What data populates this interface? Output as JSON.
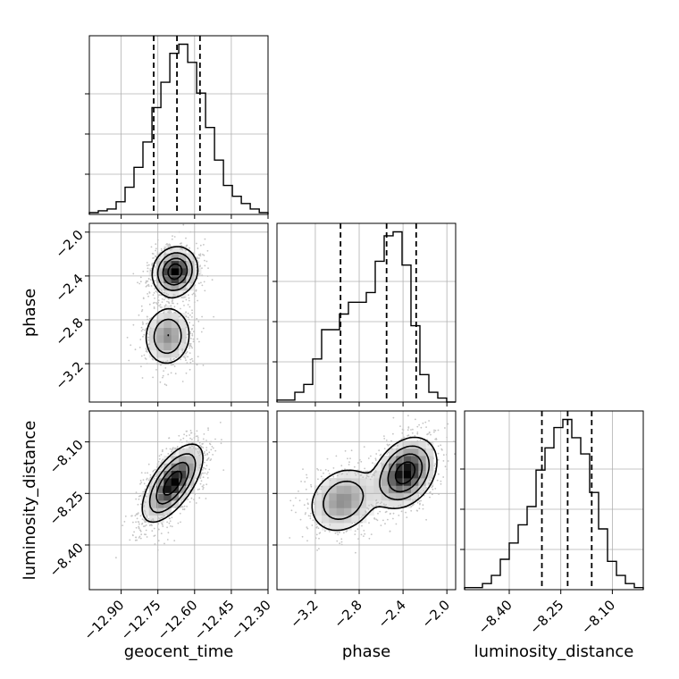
{
  "chart_data": {
    "type": "corner",
    "parameters": [
      "geocent_time",
      "phase",
      "luminosity_distance"
    ],
    "axis_labels": {
      "x": [
        "geocent_time",
        "phase",
        "luminosity_distance"
      ],
      "y": [
        "",
        "phase",
        "luminosity_distance"
      ]
    },
    "ranges": {
      "geocent_time": [
        -13.03,
        -12.3
      ],
      "phase": [
        -3.55,
        -1.92
      ],
      "luminosity_distance": [
        -8.53,
        -8.01
      ]
    },
    "ticks": {
      "geocent_time": {
        "values": [
          -12.9,
          -12.75,
          -12.6,
          -12.45,
          -12.3
        ],
        "labels": [
          "−12.90",
          "−12.75",
          "−12.60",
          "−12.45",
          "−12.30"
        ]
      },
      "phase": {
        "values": [
          -3.2,
          -2.8,
          -2.4,
          -2.0
        ],
        "labels": [
          "−3.2",
          "−2.8",
          "−2.4",
          "−2.0"
        ]
      },
      "luminosity_distance": {
        "values": [
          -8.4,
          -8.25,
          -8.1
        ],
        "labels": [
          "−8.40",
          "−8.25",
          "−8.10"
        ]
      }
    },
    "grid": true,
    "quantiles": {
      "geocent_time": [
        -12.767,
        -12.672,
        -12.578
      ],
      "phase": [
        -2.97,
        -2.55,
        -2.28
      ],
      "luminosity_distance": [
        -8.305,
        -8.23,
        -8.16
      ]
    },
    "histograms": {
      "geocent_time": {
        "bin_start": -13.03,
        "bin_width": 0.03653,
        "counts": [
          1,
          2,
          3,
          7,
          15,
          26,
          40,
          59,
          73,
          89,
          94,
          84,
          67,
          48,
          30,
          16,
          10,
          6,
          3,
          1
        ]
      },
      "phase": {
        "bin_start": -3.55,
        "bin_width": 0.0815,
        "counts": [
          1,
          1,
          5,
          9,
          22,
          37,
          37,
          45,
          51,
          51,
          56,
          72,
          85,
          87,
          70,
          39,
          14,
          5,
          2,
          0
        ]
      },
      "luminosity_distance": {
        "bin_start": -8.53,
        "bin_width": 0.026,
        "counts": [
          1,
          1,
          3,
          7,
          15,
          23,
          32,
          41,
          59,
          70,
          80,
          84,
          75,
          67,
          48,
          30,
          14,
          7,
          3,
          1
        ]
      }
    },
    "pairs": [
      {
        "x": "geocent_time",
        "y": "phase",
        "peaks": [
          {
            "mean": [
              -12.68,
              -2.36
            ],
            "sd": [
              0.045,
              0.11
            ],
            "rho": 0.1,
            "weight": 1.0
          },
          {
            "mean": [
              -12.71,
              -2.95
            ],
            "sd": [
              0.05,
              0.14
            ],
            "rho": 0.05,
            "weight": 0.55
          }
        ]
      },
      {
        "x": "geocent_time",
        "y": "luminosity_distance",
        "peaks": [
          {
            "mean": [
              -12.69,
              -8.22
            ],
            "sd": [
              0.06,
              0.055
            ],
            "rho": 0.65,
            "weight": 1.0
          }
        ]
      },
      {
        "x": "phase",
        "y": "luminosity_distance",
        "peaks": [
          {
            "mean": [
              -2.38,
              -8.19
            ],
            "sd": [
              0.14,
              0.05
            ],
            "rho": 0.3,
            "weight": 1.0
          },
          {
            "mean": [
              -2.95,
              -8.27
            ],
            "sd": [
              0.16,
              0.05
            ],
            "rho": 0.2,
            "weight": 0.55
          }
        ]
      }
    ]
  }
}
